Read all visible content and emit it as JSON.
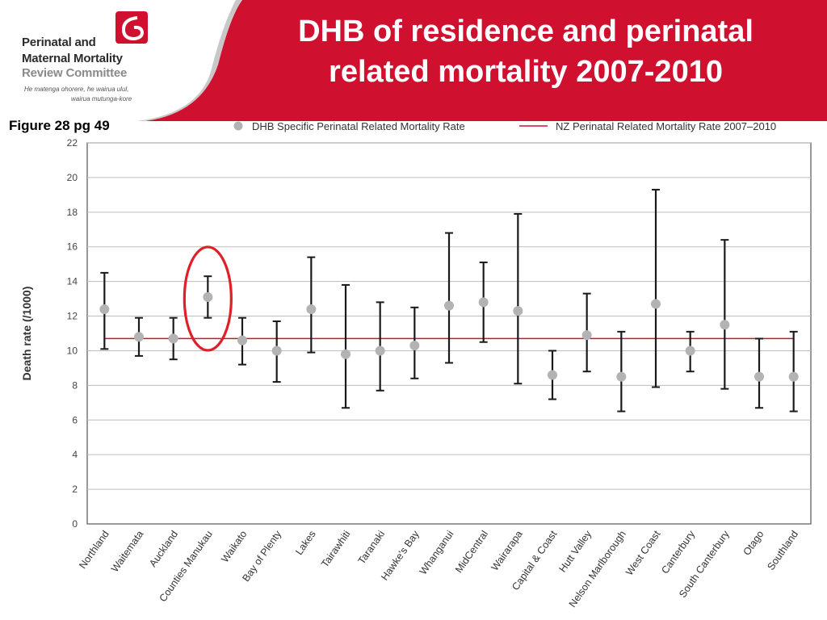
{
  "header": {
    "logo_lines": [
      "Perinatal and",
      "Maternal Mortality",
      "Review Committee"
    ],
    "logo_tagline": [
      "He matenga ohorere, he wairua ulul,",
      "wairua mutunga-kore"
    ],
    "title_lines": [
      "DHB of residence and perinatal",
      "related mortality 2007-2010"
    ],
    "figure_ref": "Figure 28 pg 49",
    "brand_red": "#d0102f"
  },
  "chart_data": {
    "type": "scatter",
    "ylabel": "Death rate (/1000)",
    "xlabel": "",
    "ylim": [
      0,
      22
    ],
    "yticks": [
      0,
      2,
      4,
      6,
      8,
      10,
      12,
      14,
      16,
      18,
      20,
      22
    ],
    "grid": true,
    "legend_position": "top",
    "legend": [
      {
        "label": "DHB Specific Perinatal Related Mortality Rate",
        "marker": "circle",
        "color": "#b3b3b3"
      },
      {
        "label": "NZ Perinatal Related Mortality Rate 2007–2010",
        "marker": "line",
        "color": "#d0102f"
      }
    ],
    "categories": [
      "Northland",
      "Waitemata",
      "Auckland",
      "Counties Manukau",
      "Waikato",
      "Bay of Plenty",
      "Lakes",
      "Tairawhiti",
      "Taranaki",
      "Hawke's Bay",
      "Whanganui",
      "MidCentral",
      "Wairarapa",
      "Capital & Coast",
      "Hutt Valley",
      "Nelson Marlborough",
      "West Coast",
      "Canterbury",
      "South Canterbury",
      "Otago",
      "Southland"
    ],
    "series": [
      {
        "name": "DHB Specific Perinatal Related Mortality Rate",
        "values": [
          12.4,
          10.8,
          10.7,
          13.1,
          10.6,
          10.0,
          12.4,
          9.8,
          10.0,
          10.3,
          12.6,
          12.8,
          12.3,
          8.6,
          10.9,
          8.5,
          12.7,
          10.0,
          11.5,
          8.5,
          8.5
        ],
        "lower": [
          10.1,
          9.7,
          9.5,
          11.9,
          9.2,
          8.2,
          9.9,
          6.7,
          7.7,
          8.4,
          9.3,
          10.5,
          8.1,
          7.2,
          8.8,
          6.5,
          7.9,
          8.8,
          7.8,
          6.7,
          6.5
        ],
        "upper": [
          14.5,
          11.9,
          11.9,
          14.3,
          11.9,
          11.7,
          15.4,
          13.8,
          12.8,
          12.5,
          16.8,
          15.1,
          17.9,
          10.0,
          13.3,
          11.1,
          19.3,
          11.1,
          16.4,
          10.7,
          11.1
        ]
      }
    ],
    "reference_line": {
      "name": "NZ Perinatal Related Mortality Rate 2007–2010",
      "value": 10.7
    },
    "highlight": {
      "category": "Counties Manukau",
      "shape": "ellipse",
      "color": "#e01f26"
    }
  }
}
